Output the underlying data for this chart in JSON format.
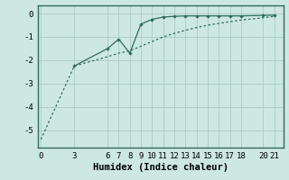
{
  "line1_x": [
    3,
    6,
    7,
    8,
    9,
    10,
    11,
    12,
    13,
    14,
    15,
    16,
    17,
    18,
    20,
    21
  ],
  "line1_y": [
    -2.25,
    -1.5,
    -1.1,
    -1.7,
    -0.45,
    -0.25,
    -0.15,
    -0.12,
    -0.1,
    -0.1,
    -0.1,
    -0.1,
    -0.1,
    -0.1,
    -0.08,
    -0.07
  ],
  "line2_x": [
    0,
    3,
    6,
    7,
    8,
    9,
    10,
    11,
    12,
    13,
    14,
    15,
    16,
    17,
    18,
    20,
    21
  ],
  "line2_y": [
    -5.4,
    -2.25,
    -1.85,
    -1.7,
    -1.6,
    -1.4,
    -1.2,
    -1.0,
    -0.85,
    -0.72,
    -0.6,
    -0.5,
    -0.42,
    -0.35,
    -0.28,
    -0.18,
    -0.12
  ],
  "line_color": "#2e6b5e",
  "bg_color": "#cde8e0",
  "grid_color": "#aaccc4",
  "xlabel": "Humidex (Indice chaleur)",
  "xticks": [
    0,
    3,
    6,
    7,
    8,
    9,
    10,
    11,
    12,
    13,
    14,
    15,
    16,
    17,
    18,
    20,
    21
  ],
  "yticks": [
    0,
    -1,
    -2,
    -3,
    -4,
    -5
  ],
  "xlim": [
    -0.3,
    21.8
  ],
  "ylim": [
    -5.75,
    0.35
  ],
  "xlabel_fontsize": 7.5,
  "tick_fontsize": 6.5
}
